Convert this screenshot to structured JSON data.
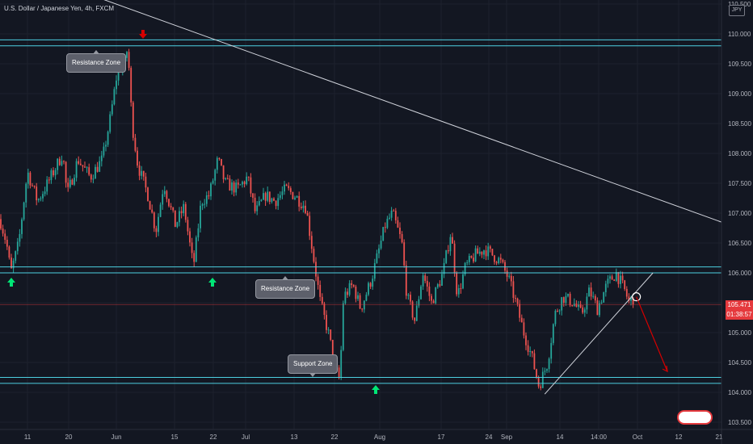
{
  "header": {
    "symbol_title": "U.S. Dollar / Japanese Yen, 4h, FXCM"
  },
  "price_scale": {
    "currency_badge": "JPY",
    "labels": [
      "110.500",
      "110.000",
      "109.500",
      "109.000",
      "108.500",
      "108.000",
      "107.500",
      "107.000",
      "106.500",
      "106.000",
      "105.500",
      "105.000",
      "104.500",
      "104.000",
      "103.500"
    ],
    "current_price": "105.471",
    "countdown": "01:38:57"
  },
  "time_axis": {
    "labels": [
      "11",
      "20",
      "Jun",
      "15",
      "22",
      "Jul",
      "13",
      "22",
      "Aug",
      "17",
      "24",
      "Sep",
      "14",
      "14:00",
      "Oct",
      "12",
      "21"
    ]
  },
  "annotations": {
    "resistance_top": "Resistance Zone",
    "resistance_mid": "Resistance Zone",
    "support": "Support Zone"
  },
  "colors": {
    "background": "#131722",
    "up": "#26a69a",
    "down": "#ef5350",
    "zone_line": "#4dd0e1",
    "arrow_up": "#00e676",
    "arrow_down": "#d50000",
    "price_badge": "#e5393d"
  },
  "chart_data": {
    "type": "candlestick",
    "title": "U.S. Dollar / Japanese Yen, 4h, FXCM",
    "y_axis": {
      "range": [
        103.4,
        110.55
      ],
      "side": "right"
    },
    "x_axis": {
      "ticks": [
        "11",
        "20",
        "Jun",
        "15",
        "22",
        "Jul",
        "13",
        "22",
        "Aug",
        "17",
        "24",
        "Sep",
        "14",
        "14:00",
        "Oct",
        "12",
        "21"
      ]
    },
    "close_path": [
      {
        "x": 0,
        "y": 106.9
      },
      {
        "x": 0.9,
        "y": 106.5
      },
      {
        "x": 1.5,
        "y": 106.0
      },
      {
        "x": 2.6,
        "y": 106.5
      },
      {
        "x": 3.8,
        "y": 107.7
      },
      {
        "x": 5.2,
        "y": 107.2
      },
      {
        "x": 6.6,
        "y": 107.5
      },
      {
        "x": 8.7,
        "y": 108.0
      },
      {
        "x": 9.3,
        "y": 107.3
      },
      {
        "x": 10.8,
        "y": 107.9
      },
      {
        "x": 12.5,
        "y": 107.6
      },
      {
        "x": 14.2,
        "y": 107.9
      },
      {
        "x": 15.3,
        "y": 108.6
      },
      {
        "x": 16.3,
        "y": 109.4
      },
      {
        "x": 17.3,
        "y": 109.5
      },
      {
        "x": 17.7,
        "y": 109.8
      },
      {
        "x": 18.3,
        "y": 108.5
      },
      {
        "x": 19.1,
        "y": 107.8
      },
      {
        "x": 20.5,
        "y": 107.3
      },
      {
        "x": 21.6,
        "y": 106.7
      },
      {
        "x": 22.7,
        "y": 107.5
      },
      {
        "x": 24.3,
        "y": 106.8
      },
      {
        "x": 25.5,
        "y": 107.1
      },
      {
        "x": 26.8,
        "y": 106.1
      },
      {
        "x": 27.9,
        "y": 107.2
      },
      {
        "x": 29.0,
        "y": 107.3
      },
      {
        "x": 30.2,
        "y": 107.9
      },
      {
        "x": 31.2,
        "y": 107.5
      },
      {
        "x": 32.9,
        "y": 107.4
      },
      {
        "x": 34.3,
        "y": 107.6
      },
      {
        "x": 35.4,
        "y": 107.0
      },
      {
        "x": 36.8,
        "y": 107.3
      },
      {
        "x": 38.1,
        "y": 107.2
      },
      {
        "x": 39.6,
        "y": 107.4
      },
      {
        "x": 40.8,
        "y": 107.3
      },
      {
        "x": 42.4,
        "y": 107.1
      },
      {
        "x": 43.4,
        "y": 106.3
      },
      {
        "x": 44.4,
        "y": 105.5
      },
      {
        "x": 45.5,
        "y": 105.0
      },
      {
        "x": 46.5,
        "y": 104.4
      },
      {
        "x": 47.1,
        "y": 104.2
      },
      {
        "x": 47.6,
        "y": 105.6
      },
      {
        "x": 48.9,
        "y": 105.8
      },
      {
        "x": 50.0,
        "y": 105.4
      },
      {
        "x": 51.5,
        "y": 105.9
      },
      {
        "x": 53.4,
        "y": 106.8
      },
      {
        "x": 54.4,
        "y": 107.0
      },
      {
        "x": 55.7,
        "y": 106.5
      },
      {
        "x": 56.4,
        "y": 105.6
      },
      {
        "x": 57.5,
        "y": 105.2
      },
      {
        "x": 58.6,
        "y": 106.0
      },
      {
        "x": 59.8,
        "y": 105.5
      },
      {
        "x": 61.4,
        "y": 106.0
      },
      {
        "x": 62.5,
        "y": 106.7
      },
      {
        "x": 63.4,
        "y": 105.6
      },
      {
        "x": 64.5,
        "y": 106.1
      },
      {
        "x": 65.9,
        "y": 106.3
      },
      {
        "x": 67.2,
        "y": 106.4
      },
      {
        "x": 69.3,
        "y": 106.2
      },
      {
        "x": 70.5,
        "y": 105.9
      },
      {
        "x": 71.5,
        "y": 105.5
      },
      {
        "x": 72.6,
        "y": 105.0
      },
      {
        "x": 73.7,
        "y": 104.6
      },
      {
        "x": 74.7,
        "y": 104.1
      },
      {
        "x": 75.9,
        "y": 104.5
      },
      {
        "x": 76.9,
        "y": 105.3
      },
      {
        "x": 78.0,
        "y": 105.6
      },
      {
        "x": 79.5,
        "y": 105.5
      },
      {
        "x": 80.6,
        "y": 105.3
      },
      {
        "x": 81.7,
        "y": 105.7
      },
      {
        "x": 82.8,
        "y": 105.4
      },
      {
        "x": 84.1,
        "y": 105.8
      },
      {
        "x": 85.4,
        "y": 106.0
      },
      {
        "x": 86.6,
        "y": 105.7
      },
      {
        "x": 87.2,
        "y": 105.5
      },
      {
        "x": 87.9,
        "y": 105.6
      }
    ],
    "zones": [
      {
        "label": "Resistance Zone",
        "prices": [
          109.8,
          109.9
        ]
      },
      {
        "label": "Resistance Zone",
        "prices": [
          106.0,
          106.1
        ]
      },
      {
        "label": "Support Zone",
        "prices": [
          104.15,
          104.25
        ]
      }
    ],
    "trendlines": [
      {
        "type": "descending",
        "from": {
          "x": 0,
          "y": 111.2
        },
        "to": {
          "x": 100,
          "y": 106.85
        }
      },
      {
        "type": "ascending",
        "from": {
          "x": 75.5,
          "y": 103.97
        },
        "to": {
          "x": 90.5,
          "y": 106.0
        }
      }
    ],
    "projection": {
      "from": {
        "x": 88.2,
        "y": 105.6
      },
      "to": {
        "x": 92.5,
        "y": 104.35
      }
    },
    "grid": true,
    "legend": "none"
  }
}
